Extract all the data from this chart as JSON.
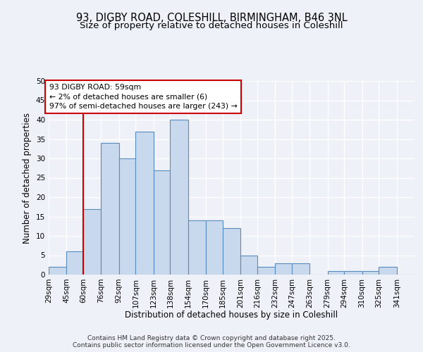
{
  "title_line1": "93, DIGBY ROAD, COLESHILL, BIRMINGHAM, B46 3NL",
  "title_line2": "Size of property relative to detached houses in Coleshill",
  "xlabel": "Distribution of detached houses by size in Coleshill",
  "ylabel": "Number of detached properties",
  "bin_labels": [
    "29sqm",
    "45sqm",
    "60sqm",
    "76sqm",
    "92sqm",
    "107sqm",
    "123sqm",
    "138sqm",
    "154sqm",
    "170sqm",
    "185sqm",
    "201sqm",
    "216sqm",
    "232sqm",
    "247sqm",
    "263sqm",
    "279sqm",
    "294sqm",
    "310sqm",
    "325sqm",
    "341sqm"
  ],
  "bin_edges": [
    29,
    45,
    60,
    76,
    92,
    107,
    123,
    138,
    154,
    170,
    185,
    201,
    216,
    232,
    247,
    263,
    279,
    294,
    310,
    325,
    341
  ],
  "values": [
    2,
    6,
    17,
    34,
    30,
    37,
    27,
    40,
    14,
    14,
    12,
    5,
    2,
    3,
    3,
    0,
    1,
    1,
    1,
    2,
    0
  ],
  "bar_color": "#c9d9ed",
  "bar_edge_color": "#5a8bbf",
  "red_line_x": 60,
  "annotation_line1": "93 DIGBY ROAD: 59sqm",
  "annotation_line2": "← 2% of detached houses are smaller (6)",
  "annotation_line3": "97% of semi-detached houses are larger (243) →",
  "annotation_box_color": "#ffffff",
  "annotation_box_edge": "#cc0000",
  "red_line_color": "#cc0000",
  "ylim": [
    0,
    50
  ],
  "yticks": [
    0,
    5,
    10,
    15,
    20,
    25,
    30,
    35,
    40,
    45,
    50
  ],
  "footer_line1": "Contains HM Land Registry data © Crown copyright and database right 2025.",
  "footer_line2": "Contains public sector information licensed under the Open Government Licence v3.0.",
  "background_color": "#eef2f8",
  "plot_background": "#eef2f8",
  "grid_color": "#ffffff",
  "title_fontsize": 10.5,
  "subtitle_fontsize": 9.5,
  "axis_label_fontsize": 8.5,
  "tick_fontsize": 7.5,
  "annotation_fontsize": 7.8,
  "footer_fontsize": 6.5
}
